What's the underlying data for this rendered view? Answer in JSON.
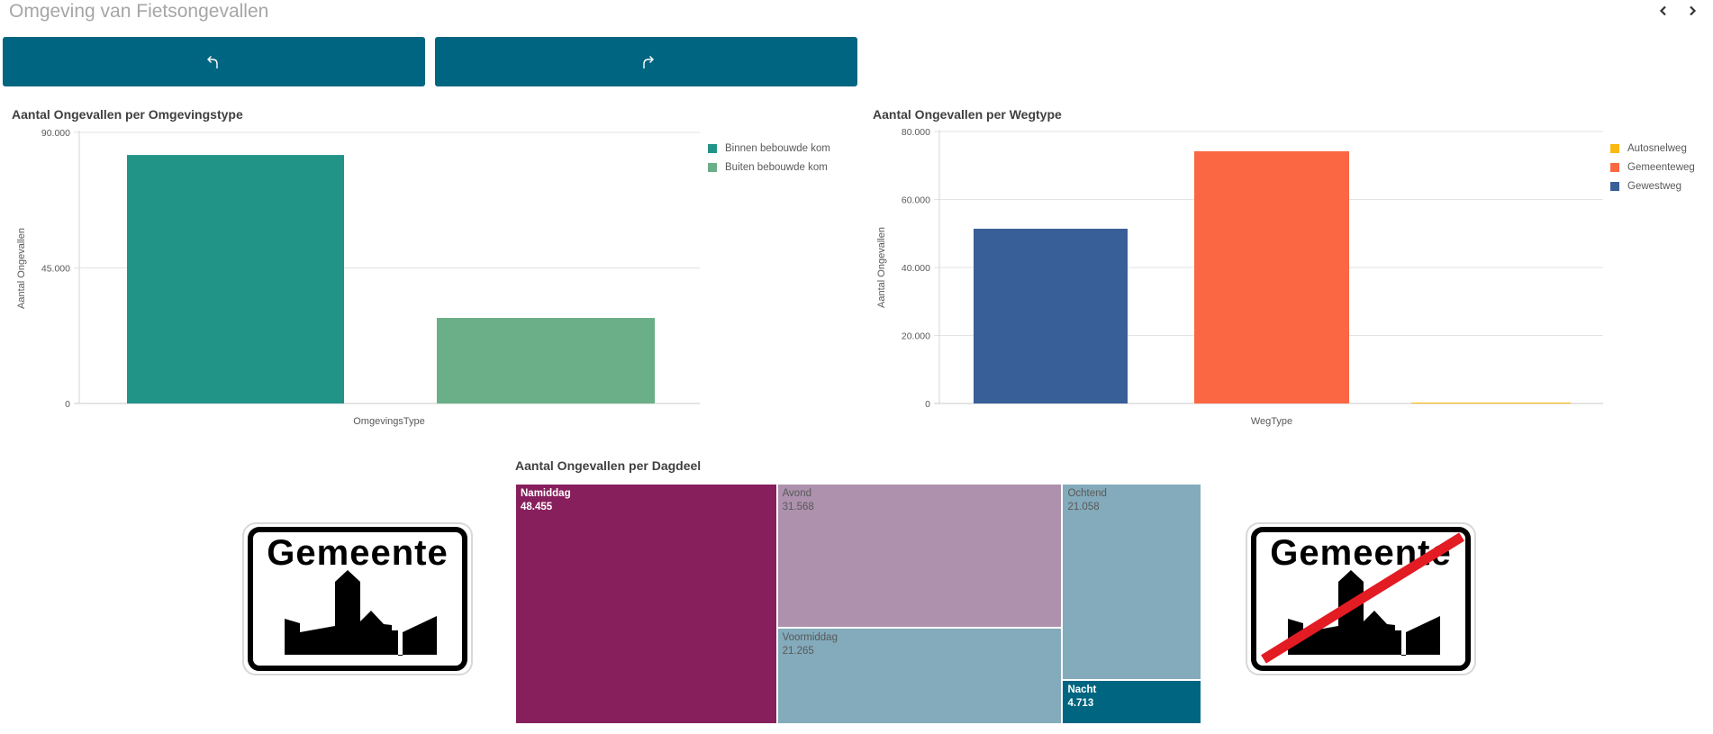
{
  "sheet": {
    "title": "Omgeving van Fietsongevallen",
    "nav": {
      "prev_icon": "chevron-left-icon",
      "next_icon": "chevron-right-icon"
    }
  },
  "actions": {
    "back_icon": "undo-arrow-icon",
    "forward_icon": "redo-arrow-icon",
    "button_color": "#006580"
  },
  "signs": {
    "enter": {
      "text": "Gemeente",
      "meaning": "begin-gemeente-sign"
    },
    "leave": {
      "text": "Gemeente",
      "meaning": "einde-gemeente-sign"
    }
  },
  "chart_data": [
    {
      "type": "bar",
      "title": "Aantal Ongevallen per Omgevingstype",
      "xlabel": "OmgevingsType",
      "ylabel": "Aantal Ongevallen",
      "ylim": [
        0,
        90000
      ],
      "yticks": [
        0,
        45000,
        90000
      ],
      "ytick_labels": [
        "0",
        "45.000",
        "90.000"
      ],
      "grid": true,
      "legend_position": "top-right",
      "categories": [
        "Binnen bebouwde kom",
        "Buiten bebouwde kom"
      ],
      "values": [
        82500,
        28400
      ],
      "colors": [
        "#229387",
        "#6aaf87"
      ]
    },
    {
      "type": "bar",
      "title": "Aantal Ongevallen per Wegtype",
      "xlabel": "WegType",
      "ylabel": "Aantal Ongevallen",
      "ylim": [
        0,
        80000
      ],
      "yticks": [
        0,
        20000,
        40000,
        60000,
        80000
      ],
      "ytick_labels": [
        "0",
        "20.000",
        "40.000",
        "60.000",
        "80.000"
      ],
      "grid": true,
      "legend_position": "top-right",
      "legend": [
        "Autosnelweg",
        "Gemeenteweg",
        "Gewestweg"
      ],
      "legend_colors": [
        "#fbb80e",
        "#fb6743",
        "#385f98"
      ],
      "categories": [
        "Gewestweg",
        "Gemeenteweg",
        "Autosnelweg"
      ],
      "values": [
        51400,
        74200,
        200
      ],
      "colors": [
        "#385f98",
        "#fb6743",
        "#fbb80e"
      ]
    },
    {
      "type": "treemap",
      "title": "Aantal Ongevallen per Dagdeel",
      "items": [
        {
          "label": "Namiddag",
          "value": 48455,
          "value_label": "48.455",
          "color": "#871f5c",
          "text": "light"
        },
        {
          "label": "Avond",
          "value": 31568,
          "value_label": "31.568",
          "color": "#ad91ad",
          "text": "dark"
        },
        {
          "label": "Voormiddag",
          "value": 21265,
          "value_label": "21.265",
          "color": "#83abbb",
          "text": "dark"
        },
        {
          "label": "Ochtend",
          "value": 21058,
          "value_label": "21.058",
          "color": "#83abbb",
          "text": "dark"
        },
        {
          "label": "Nacht",
          "value": 4713,
          "value_label": "4.713",
          "color": "#006580",
          "text": "light"
        }
      ]
    }
  ]
}
